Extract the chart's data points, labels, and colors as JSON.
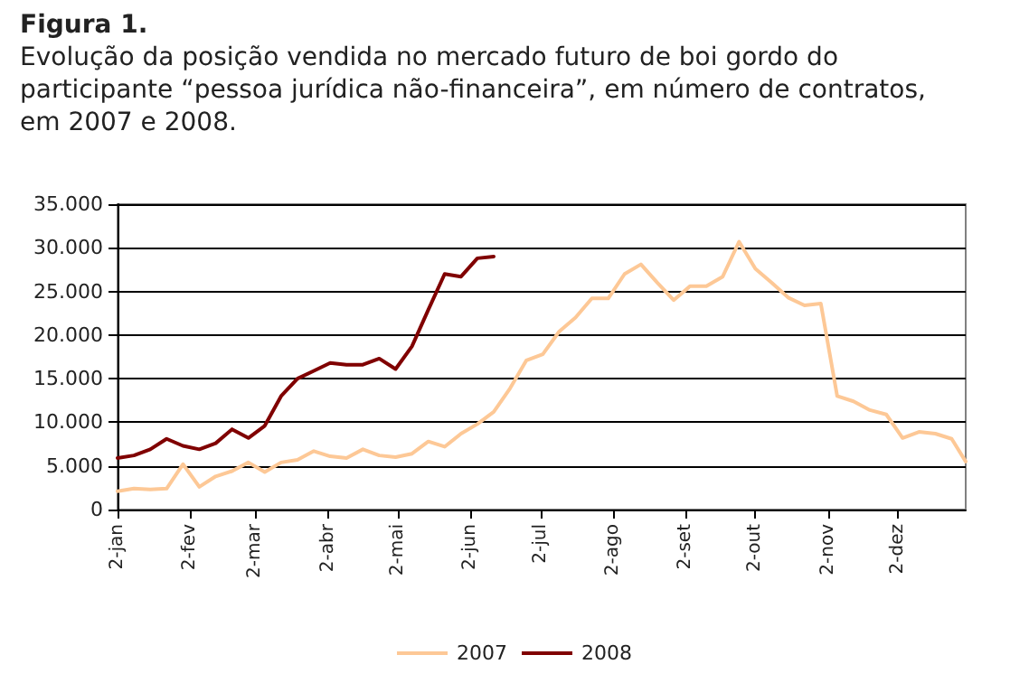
{
  "chart_data": {
    "type": "line",
    "title": "Figura 1.",
    "subtitle": "Evolução da posição vendida no mercado futuro de boi gordo do participante “pessoa jurídica não-financeira”, em número de contratos, em 2007 e 2008.",
    "x": [
      "--01-02",
      "--01-09",
      "--01-16",
      "--01-23",
      "--01-30",
      "--02-06",
      "--02-13",
      "--02-20",
      "--02-27",
      "--03-06",
      "--03-13",
      "--03-20",
      "--03-27",
      "--04-03",
      "--04-10",
      "--04-17",
      "--04-24",
      "--05-01",
      "--05-08",
      "--05-15",
      "--05-22",
      "--05-29",
      "--06-05",
      "--06-12",
      "--06-19",
      "--06-26",
      "--07-03",
      "--07-10",
      "--07-17",
      "--07-24",
      "--07-31",
      "--08-07",
      "--08-14",
      "--08-21",
      "--08-28",
      "--09-04",
      "--09-11",
      "--09-18",
      "--09-25",
      "--10-02",
      "--10-09",
      "--10-16",
      "--10-23",
      "--10-30",
      "--11-06",
      "--11-13",
      "--11-20",
      "--11-27",
      "--12-04",
      "--12-11",
      "--12-18",
      "--12-25",
      "--12-31"
    ],
    "series": [
      {
        "name": "2007",
        "color": "#fdc896",
        "values": [
          2100,
          2400,
          2300,
          2400,
          5200,
          2600,
          3800,
          4400,
          5400,
          4300,
          5400,
          5700,
          6700,
          6100,
          5900,
          6900,
          6200,
          6000,
          6400,
          7800,
          7200,
          8700,
          9800,
          11200,
          13900,
          17100,
          17800,
          20400,
          22000,
          24200,
          24200,
          27000,
          28100,
          26000,
          24000,
          25600,
          25600,
          26700,
          30700,
          27600,
          26000,
          24300,
          23400,
          23600,
          13000,
          12400,
          11400,
          10900,
          8200,
          8900,
          8700,
          8100,
          5500
        ]
      },
      {
        "name": "2008",
        "color": "#800000",
        "x": [
          "--01-02",
          "--01-09",
          "--01-16",
          "--01-23",
          "--01-30",
          "--02-06",
          "--02-13",
          "--02-20",
          "--02-27",
          "--03-06",
          "--03-13",
          "--03-20",
          "--03-27",
          "--04-03",
          "--04-10",
          "--04-17",
          "--04-24",
          "--05-01",
          "--05-08",
          "--05-15",
          "--05-22",
          "--05-29",
          "--06-05",
          "--06-12"
        ],
        "values": [
          5900,
          6200,
          6900,
          8100,
          7300,
          6900,
          7600,
          9200,
          8200,
          9600,
          13000,
          15000,
          15900,
          16800,
          16600,
          16600,
          17300,
          16100,
          18700,
          22900,
          27000,
          26700,
          28800,
          29000
        ]
      }
    ],
    "xlim": [
      "--01-02",
      "--12-31"
    ],
    "xticks": [
      {
        "value": "--01-02",
        "label": "2-jan"
      },
      {
        "value": "--02-02",
        "label": "2-fev"
      },
      {
        "value": "--03-02",
        "label": "2-mar"
      },
      {
        "value": "--04-02",
        "label": "2-abr"
      },
      {
        "value": "--05-02",
        "label": "2-mai"
      },
      {
        "value": "--06-02",
        "label": "2-jun"
      },
      {
        "value": "--07-02",
        "label": "2-jul"
      },
      {
        "value": "--08-02",
        "label": "2-ago"
      },
      {
        "value": "--09-02",
        "label": "2-set"
      },
      {
        "value": "--10-02",
        "label": "2-out"
      },
      {
        "value": "--11-02",
        "label": "2-nov"
      },
      {
        "value": "--12-02",
        "label": "2-dez"
      }
    ],
    "ylim": [
      0,
      35000
    ],
    "yticks": [
      {
        "value": 0,
        "label": "0"
      },
      {
        "value": 5000,
        "label": "5.000"
      },
      {
        "value": 10000,
        "label": "10.000"
      },
      {
        "value": 15000,
        "label": "15.000"
      },
      {
        "value": 20000,
        "label": "20.000"
      },
      {
        "value": 25000,
        "label": "25.000"
      },
      {
        "value": 30000,
        "label": "30.000"
      },
      {
        "value": 35000,
        "label": "35.000"
      }
    ],
    "grid": "y",
    "legend": "bottom",
    "marker": "none",
    "line_style": "solid"
  }
}
